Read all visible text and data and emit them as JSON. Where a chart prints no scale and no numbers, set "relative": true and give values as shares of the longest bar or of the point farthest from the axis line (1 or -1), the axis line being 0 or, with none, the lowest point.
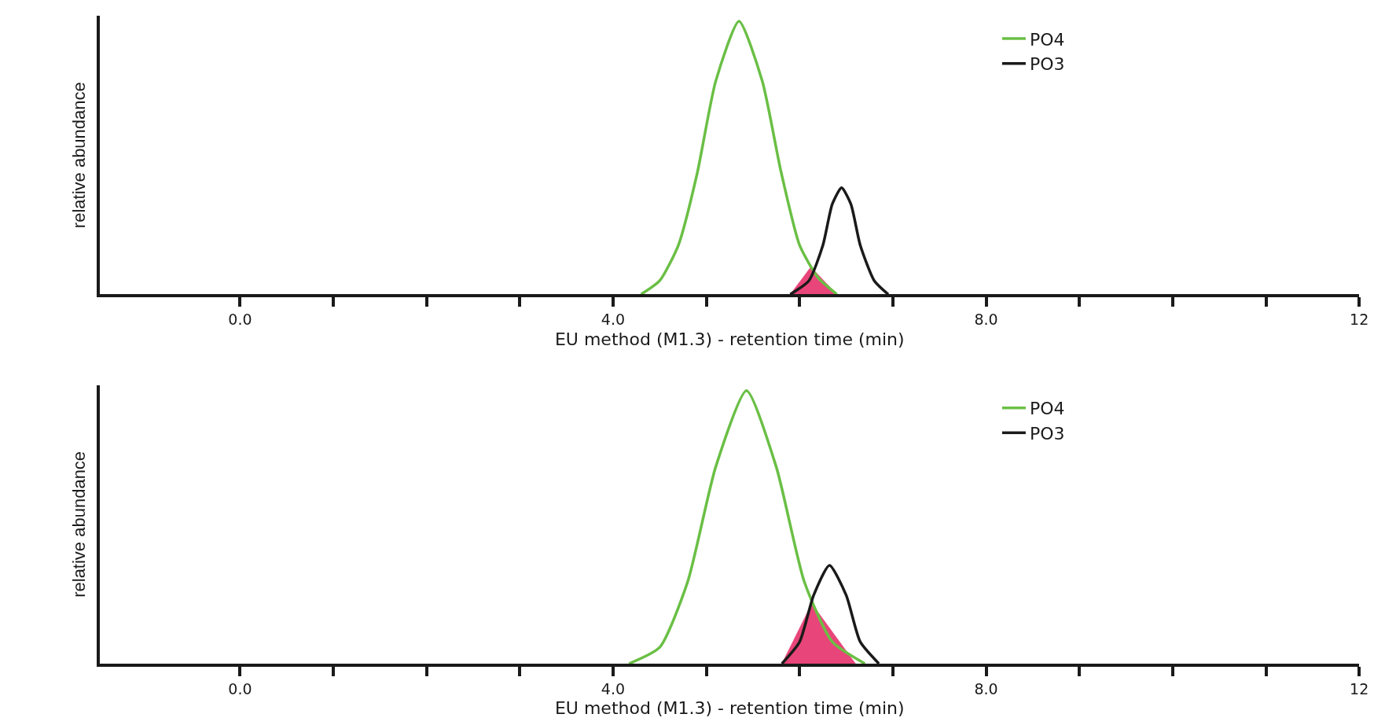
{
  "chart_data": [
    {
      "type": "line",
      "relative": true,
      "xlabel": "EU method (M1.3) - retention time (min)",
      "ylabel": "relative abundance",
      "xlim": [
        -1.5,
        12
      ],
      "xticks": [
        {
          "value": 0,
          "label": "0.0"
        },
        {
          "value": 1,
          "label": null
        },
        {
          "value": 2,
          "label": null
        },
        {
          "value": 3,
          "label": null
        },
        {
          "value": 4,
          "label": "4.0"
        },
        {
          "value": 5,
          "label": null
        },
        {
          "value": 6,
          "label": null
        },
        {
          "value": 7,
          "label": null
        },
        {
          "value": 8,
          "label": "8.0"
        },
        {
          "value": 9,
          "label": null
        },
        {
          "value": 10,
          "label": null
        },
        {
          "value": 11,
          "label": null
        },
        12
      ],
      "legend": "top right",
      "marker": "none",
      "line_style": "solid",
      "series": [
        {
          "type": "area",
          "color": "#e8457a",
          "x": [
            5.9,
            6.12,
            6.4
          ],
          "values": [
            0,
            0.1,
            0
          ]
        },
        {
          "name": "PO4",
          "color": "#6abf45",
          "x": [
            4.3,
            4.5,
            4.7,
            4.9,
            5.1,
            5.35,
            5.6,
            5.8,
            6.0,
            6.2,
            6.4
          ],
          "values": [
            0,
            0.05,
            0.18,
            0.44,
            0.78,
            1,
            0.78,
            0.45,
            0.18,
            0.06,
            0
          ]
        },
        {
          "name": "PO3",
          "color": "#1a1a1a",
          "x": [
            5.9,
            6.1,
            6.25,
            6.35,
            6.45,
            6.55,
            6.65,
            6.8,
            6.95
          ],
          "values": [
            0,
            0.05,
            0.18,
            0.33,
            0.39,
            0.33,
            0.18,
            0.05,
            0
          ]
        }
      ]
    },
    {
      "type": "line",
      "relative": true,
      "xlabel": "EU method (M1.3) - retention time (min)",
      "ylabel": "relative abundance",
      "xlim": [
        -1.5,
        12
      ],
      "xticks": [
        {
          "value": 0,
          "label": "0.0"
        },
        {
          "value": 1,
          "label": null
        },
        {
          "value": 2,
          "label": null
        },
        {
          "value": 3,
          "label": null
        },
        {
          "value": 4,
          "label": "4.0"
        },
        {
          "value": 5,
          "label": null
        },
        {
          "value": 6,
          "label": null
        },
        {
          "value": 7,
          "label": null
        },
        {
          "value": 8,
          "label": "8.0"
        },
        {
          "value": 9,
          "label": null
        },
        {
          "value": 10,
          "label": null
        },
        {
          "value": 11,
          "label": null
        },
        12
      ],
      "legend": "top right",
      "marker": "none",
      "line_style": "solid",
      "series": [
        {
          "type": "area",
          "color": "#e8457a",
          "x": [
            5.81,
            6.13,
            6.6
          ],
          "values": [
            0,
            0.22,
            0
          ]
        },
        {
          "name": "PO4",
          "color": "#6abf45",
          "x": [
            4.17,
            4.5,
            4.8,
            5.1,
            5.43,
            5.75,
            6.05,
            6.35,
            6.7
          ],
          "values": [
            0,
            0.06,
            0.3,
            0.72,
            1,
            0.72,
            0.3,
            0.08,
            0
          ]
        },
        {
          "name": "PO3",
          "color": "#1a1a1a",
          "x": [
            5.81,
            6.0,
            6.15,
            6.32,
            6.5,
            6.65,
            6.85
          ],
          "values": [
            0,
            0.08,
            0.25,
            0.36,
            0.25,
            0.08,
            0
          ]
        }
      ]
    }
  ]
}
